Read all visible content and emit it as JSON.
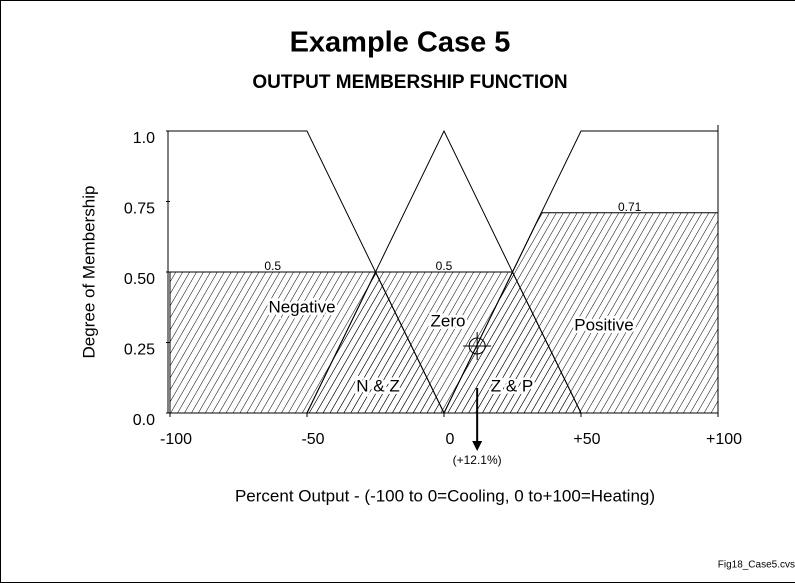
{
  "chart_data": {
    "type": "membership",
    "title": "Example Case 5",
    "subtitle": "OUTPUT MEMBERSHIP FUNCTION",
    "y_label": "Degree of Membership",
    "x_label": "Percent Output - (-100 to 0=Cooling, 0 to+100=Heating)",
    "footer": "Fig18_Case5.cvs",
    "xlim": [
      -100,
      100
    ],
    "ylim": [
      0,
      1
    ],
    "xticks": [
      -100,
      -50,
      0,
      {
        "value": 50,
        "label": "+50"
      },
      {
        "value": 100,
        "label": "+100"
      }
    ],
    "yticks": [
      {
        "value": 0,
        "label": "0.0"
      },
      0.25,
      {
        "value": 0.5,
        "label": "0.50"
      },
      0.75,
      {
        "value": 1,
        "label": "1.0"
      }
    ],
    "color": "#000000",
    "series": [
      {
        "name": "Negative",
        "x": [
          -100,
          -50,
          0
        ],
        "values": [
          1,
          1,
          0
        ],
        "clip": 0.5
      },
      {
        "name": "Zero",
        "x": [
          -50,
          0,
          50
        ],
        "values": [
          0,
          1,
          0
        ],
        "clip": 0.5
      },
      {
        "name": "Positive",
        "x": [
          0,
          50,
          100
        ],
        "values": [
          0,
          1,
          1
        ],
        "clip": 0.71
      }
    ],
    "overlap_labels": [
      "N & Z",
      "Z & P"
    ],
    "result": {
      "value": 12.1,
      "label": "(+12.1%)"
    }
  }
}
